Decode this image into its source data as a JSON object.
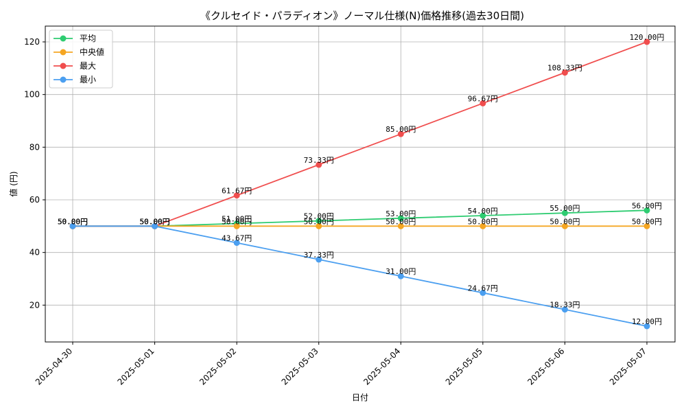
{
  "chart_data": {
    "type": "line",
    "title": "《クルセイド・パラディオン》ノーマル仕様(N)価格推移(過去30日間)",
    "xlabel": "日付",
    "ylabel": "値 (円)",
    "categories": [
      "2025-04-30",
      "2025-05-01",
      "2025-05-02",
      "2025-05-03",
      "2025-05-04",
      "2025-05-05",
      "2025-05-06",
      "2025-05-07"
    ],
    "ylim": [
      6,
      126
    ],
    "yticks": [
      20,
      40,
      60,
      80,
      100,
      120
    ],
    "grid": true,
    "legend_position": "top-left",
    "label_suffix": "円",
    "series": [
      {
        "name": "平均",
        "color": "#2ecc71",
        "values": [
          50.0,
          50.0,
          51.0,
          52.0,
          53.0,
          54.0,
          55.0,
          56.0
        ]
      },
      {
        "name": "中央値",
        "color": "#f5a623",
        "values": [
          50.0,
          50.0,
          50.0,
          50.0,
          50.0,
          50.0,
          50.0,
          50.0
        ]
      },
      {
        "name": "最大",
        "color": "#f04e4e",
        "values": [
          50.0,
          50.0,
          61.67,
          73.33,
          85.0,
          96.67,
          108.33,
          120.0
        ]
      },
      {
        "name": "最小",
        "color": "#4b9ff0",
        "values": [
          50.0,
          50.0,
          43.67,
          37.33,
          31.0,
          24.67,
          18.33,
          12.0
        ]
      }
    ]
  }
}
